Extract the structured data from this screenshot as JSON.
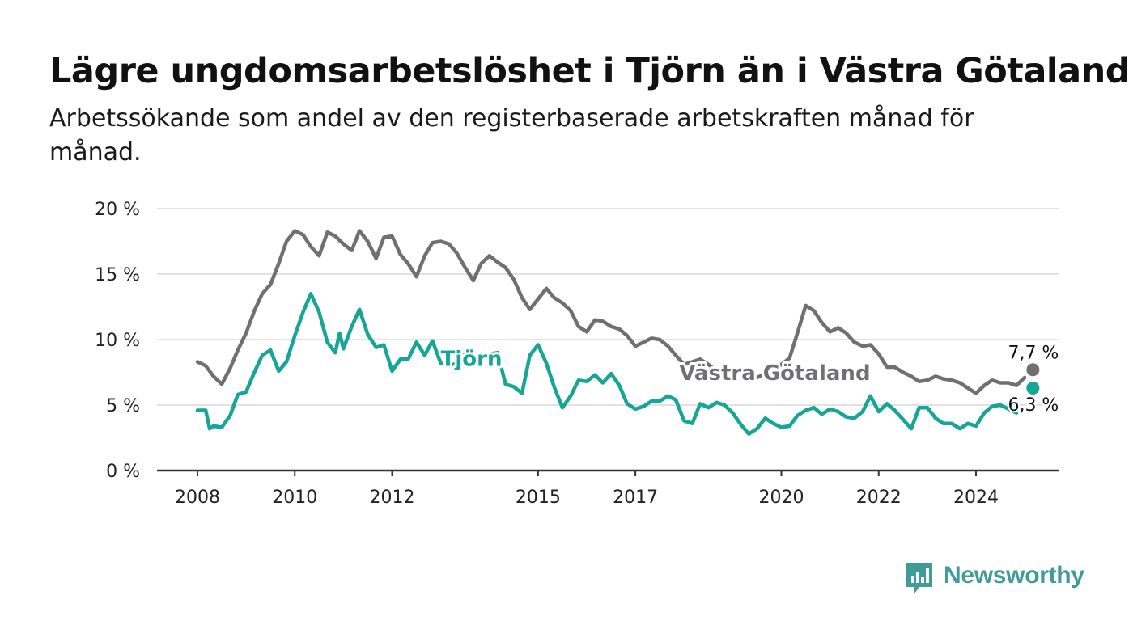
{
  "title": "Lägre ungdomsarbetslöshet i Tjörn än i Västra Götaland",
  "subtitle": "Arbetssökande som andel av den registerbaserade arbetskraften månad för månad.",
  "brand": {
    "name": "Newsworthy",
    "color": "#3f9c9a"
  },
  "chart_data": {
    "type": "line",
    "title": "Lägre ungdomsarbetslöshet i Tjörn än i Västra Götaland",
    "subtitle": "Arbetssökande som andel av den registerbaserade arbetskraften månad för månad.",
    "ylim": [
      0,
      20
    ],
    "yticks": [
      0,
      5,
      10,
      15,
      20
    ],
    "ytick_labels": [
      "0 %",
      "5 %",
      "10 %",
      "15 %",
      "20 %"
    ],
    "xlim": [
      2008,
      2025.2
    ],
    "xticks": [
      2008,
      2010,
      2012,
      2015,
      2017,
      2020,
      2022,
      2024
    ],
    "xtick_labels": [
      "2008",
      "2010",
      "2012",
      "2015",
      "2017",
      "2020",
      "2022",
      "2024"
    ],
    "grid": "horizontal",
    "legend": "inline labels",
    "series": [
      {
        "name": "Västra Götaland",
        "color": "#707074",
        "end_label": "7,7 %",
        "points": [
          [
            2008.0,
            8.3
          ],
          [
            2008.17,
            8.0
          ],
          [
            2008.33,
            7.2
          ],
          [
            2008.5,
            6.6
          ],
          [
            2008.67,
            7.8
          ],
          [
            2008.83,
            9.2
          ],
          [
            2009.0,
            10.5
          ],
          [
            2009.17,
            12.2
          ],
          [
            2009.33,
            13.5
          ],
          [
            2009.5,
            14.2
          ],
          [
            2009.67,
            15.8
          ],
          [
            2009.83,
            17.5
          ],
          [
            2010.0,
            18.3
          ],
          [
            2010.17,
            18.0
          ],
          [
            2010.33,
            17.1
          ],
          [
            2010.5,
            16.4
          ],
          [
            2010.67,
            18.2
          ],
          [
            2010.83,
            17.9
          ],
          [
            2011.0,
            17.3
          ],
          [
            2011.17,
            16.8
          ],
          [
            2011.33,
            18.3
          ],
          [
            2011.5,
            17.5
          ],
          [
            2011.67,
            16.2
          ],
          [
            2011.83,
            17.8
          ],
          [
            2012.0,
            17.9
          ],
          [
            2012.17,
            16.5
          ],
          [
            2012.33,
            15.8
          ],
          [
            2012.5,
            14.8
          ],
          [
            2012.67,
            16.4
          ],
          [
            2012.83,
            17.4
          ],
          [
            2013.0,
            17.5
          ],
          [
            2013.17,
            17.3
          ],
          [
            2013.33,
            16.6
          ],
          [
            2013.5,
            15.5
          ],
          [
            2013.67,
            14.5
          ],
          [
            2013.83,
            15.8
          ],
          [
            2014.0,
            16.4
          ],
          [
            2014.17,
            15.9
          ],
          [
            2014.33,
            15.5
          ],
          [
            2014.5,
            14.6
          ],
          [
            2014.67,
            13.2
          ],
          [
            2014.83,
            12.3
          ],
          [
            2015.0,
            13.1
          ],
          [
            2015.17,
            13.9
          ],
          [
            2015.33,
            13.2
          ],
          [
            2015.5,
            12.8
          ],
          [
            2015.67,
            12.2
          ],
          [
            2015.83,
            11.0
          ],
          [
            2016.0,
            10.6
          ],
          [
            2016.17,
            11.5
          ],
          [
            2016.33,
            11.4
          ],
          [
            2016.5,
            11.0
          ],
          [
            2016.67,
            10.8
          ],
          [
            2016.83,
            10.3
          ],
          [
            2017.0,
            9.5
          ],
          [
            2017.17,
            9.8
          ],
          [
            2017.33,
            10.1
          ],
          [
            2017.5,
            10.0
          ],
          [
            2017.67,
            9.5
          ],
          [
            2017.83,
            8.8
          ],
          [
            2018.0,
            8.1
          ],
          [
            2018.17,
            8.3
          ],
          [
            2018.33,
            8.5
          ],
          [
            2018.5,
            8.1
          ],
          [
            2018.67,
            7.6
          ],
          [
            2018.83,
            7.7
          ],
          [
            2019.0,
            7.6
          ],
          [
            2019.17,
            7.8
          ],
          [
            2019.33,
            7.4
          ],
          [
            2019.5,
            7.1
          ],
          [
            2019.67,
            7.4
          ],
          [
            2019.83,
            7.6
          ],
          [
            2020.0,
            8.1
          ],
          [
            2020.17,
            8.6
          ],
          [
            2020.33,
            10.5
          ],
          [
            2020.5,
            12.6
          ],
          [
            2020.67,
            12.2
          ],
          [
            2020.83,
            11.3
          ],
          [
            2021.0,
            10.6
          ],
          [
            2021.17,
            10.9
          ],
          [
            2021.33,
            10.5
          ],
          [
            2021.5,
            9.8
          ],
          [
            2021.67,
            9.5
          ],
          [
            2021.83,
            9.6
          ],
          [
            2022.0,
            8.9
          ],
          [
            2022.17,
            7.9
          ],
          [
            2022.33,
            7.9
          ],
          [
            2022.5,
            7.5
          ],
          [
            2022.67,
            7.2
          ],
          [
            2022.83,
            6.8
          ],
          [
            2023.0,
            6.9
          ],
          [
            2023.17,
            7.2
          ],
          [
            2023.33,
            7.0
          ],
          [
            2023.5,
            6.9
          ],
          [
            2023.67,
            6.7
          ],
          [
            2023.83,
            6.3
          ],
          [
            2024.0,
            5.9
          ],
          [
            2024.17,
            6.5
          ],
          [
            2024.33,
            6.9
          ],
          [
            2024.5,
            6.7
          ],
          [
            2024.67,
            6.7
          ],
          [
            2024.83,
            6.5
          ],
          [
            2025.0,
            7.1
          ],
          [
            2025.17,
            7.7
          ]
        ]
      },
      {
        "name": "Tjörn",
        "color": "#16a596",
        "end_label": "6,3 %",
        "points": [
          [
            2008.0,
            4.6
          ],
          [
            2008.17,
            4.6
          ],
          [
            2008.25,
            3.2
          ],
          [
            2008.33,
            3.4
          ],
          [
            2008.5,
            3.3
          ],
          [
            2008.67,
            4.2
          ],
          [
            2008.83,
            5.8
          ],
          [
            2009.0,
            6.0
          ],
          [
            2009.17,
            7.5
          ],
          [
            2009.33,
            8.8
          ],
          [
            2009.5,
            9.2
          ],
          [
            2009.67,
            7.6
          ],
          [
            2009.83,
            8.3
          ],
          [
            2010.0,
            10.3
          ],
          [
            2010.17,
            12.1
          ],
          [
            2010.33,
            13.5
          ],
          [
            2010.5,
            12.1
          ],
          [
            2010.67,
            9.8
          ],
          [
            2010.83,
            9.0
          ],
          [
            2010.92,
            10.5
          ],
          [
            2011.0,
            9.3
          ],
          [
            2011.17,
            11.0
          ],
          [
            2011.33,
            12.3
          ],
          [
            2011.5,
            10.4
          ],
          [
            2011.67,
            9.4
          ],
          [
            2011.83,
            9.6
          ],
          [
            2012.0,
            7.6
          ],
          [
            2012.17,
            8.5
          ],
          [
            2012.33,
            8.5
          ],
          [
            2012.5,
            9.8
          ],
          [
            2012.67,
            8.8
          ],
          [
            2012.83,
            9.9
          ],
          [
            2013.0,
            8.2
          ],
          [
            2013.17,
            8.0
          ],
          [
            2013.33,
            8.2
          ],
          [
            2013.5,
            8.9
          ],
          [
            2013.67,
            8.0
          ],
          [
            2013.83,
            8.5
          ],
          [
            2014.0,
            8.9
          ],
          [
            2014.17,
            9.0
          ],
          [
            2014.33,
            6.6
          ],
          [
            2014.5,
            6.4
          ],
          [
            2014.67,
            5.9
          ],
          [
            2014.83,
            8.8
          ],
          [
            2015.0,
            9.6
          ],
          [
            2015.17,
            8.2
          ],
          [
            2015.33,
            6.4
          ],
          [
            2015.5,
            4.8
          ],
          [
            2015.67,
            5.7
          ],
          [
            2015.83,
            6.9
          ],
          [
            2016.0,
            6.8
          ],
          [
            2016.17,
            7.3
          ],
          [
            2016.33,
            6.7
          ],
          [
            2016.5,
            7.4
          ],
          [
            2016.67,
            6.5
          ],
          [
            2016.83,
            5.1
          ],
          [
            2017.0,
            4.7
          ],
          [
            2017.17,
            4.9
          ],
          [
            2017.33,
            5.3
          ],
          [
            2017.5,
            5.3
          ],
          [
            2017.67,
            5.7
          ],
          [
            2017.83,
            5.4
          ],
          [
            2018.0,
            3.8
          ],
          [
            2018.17,
            3.6
          ],
          [
            2018.33,
            5.1
          ],
          [
            2018.5,
            4.8
          ],
          [
            2018.67,
            5.2
          ],
          [
            2018.83,
            5.0
          ],
          [
            2019.0,
            4.4
          ],
          [
            2019.17,
            3.5
          ],
          [
            2019.33,
            2.8
          ],
          [
            2019.5,
            3.2
          ],
          [
            2019.67,
            4.0
          ],
          [
            2019.83,
            3.6
          ],
          [
            2020.0,
            3.3
          ],
          [
            2020.17,
            3.4
          ],
          [
            2020.33,
            4.2
          ],
          [
            2020.5,
            4.6
          ],
          [
            2020.67,
            4.8
          ],
          [
            2020.83,
            4.3
          ],
          [
            2021.0,
            4.7
          ],
          [
            2021.17,
            4.5
          ],
          [
            2021.33,
            4.1
          ],
          [
            2021.5,
            4.0
          ],
          [
            2021.67,
            4.5
          ],
          [
            2021.83,
            5.7
          ],
          [
            2022.0,
            4.5
          ],
          [
            2022.17,
            5.1
          ],
          [
            2022.33,
            4.6
          ],
          [
            2022.5,
            3.9
          ],
          [
            2022.67,
            3.2
          ],
          [
            2022.83,
            4.8
          ],
          [
            2023.0,
            4.8
          ],
          [
            2023.17,
            4.0
          ],
          [
            2023.33,
            3.6
          ],
          [
            2023.5,
            3.6
          ],
          [
            2023.67,
            3.2
          ],
          [
            2023.83,
            3.6
          ],
          [
            2024.0,
            3.4
          ],
          [
            2024.17,
            4.4
          ],
          [
            2024.33,
            4.9
          ],
          [
            2024.5,
            5.0
          ],
          [
            2024.67,
            4.7
          ],
          [
            2024.83,
            4.4
          ],
          [
            2025.17,
            6.3
          ]
        ]
      }
    ],
    "inline_labels": [
      {
        "series": "Tjörn",
        "text": "Tjörn",
        "x": 2013.0,
        "y": 8.0
      },
      {
        "series": "Västra Götaland",
        "text": "Västra Götaland",
        "x": 2017.9,
        "y": 6.9
      }
    ]
  }
}
